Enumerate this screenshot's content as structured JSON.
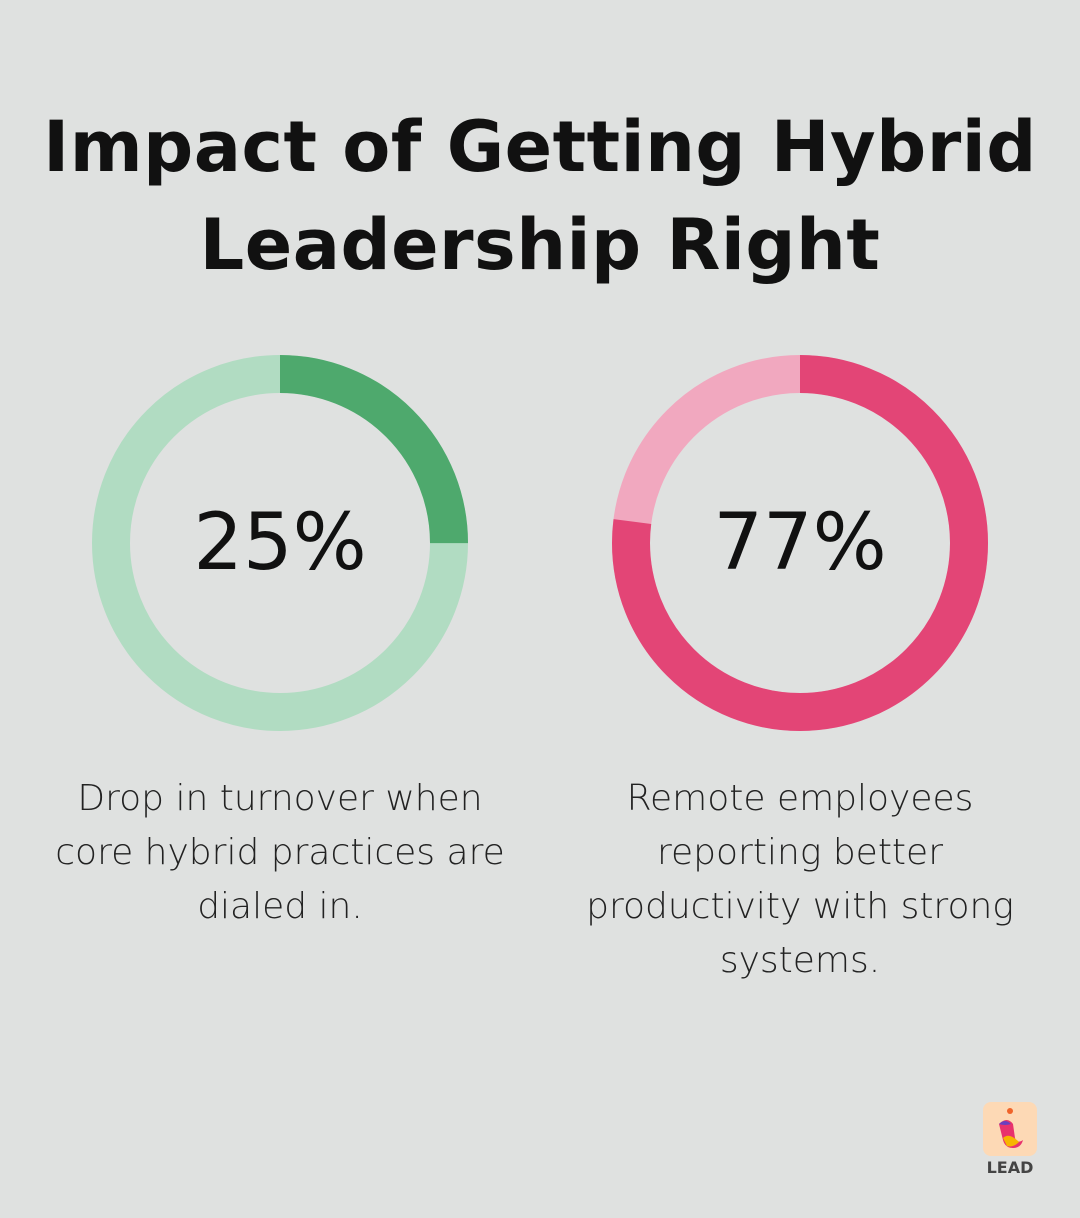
{
  "title": "Impact of Getting Hybrid Leadership Right",
  "chart_data": [
    {
      "type": "pie",
      "variant": "donut",
      "value": 25,
      "label": "25%",
      "description": "Drop in turnover when core hybrid practices are dialed in.",
      "colors": {
        "filled": "#4ea96d",
        "remainder": "#b1dcc2"
      }
    },
    {
      "type": "pie",
      "variant": "donut",
      "value": 77,
      "label": "77%",
      "description": "Remote employees reporting better productivity with strong systems.",
      "colors": {
        "filled": "#e34576",
        "remainder": "#f1a8bf"
      }
    }
  ],
  "logo": {
    "text": "LEAD"
  }
}
